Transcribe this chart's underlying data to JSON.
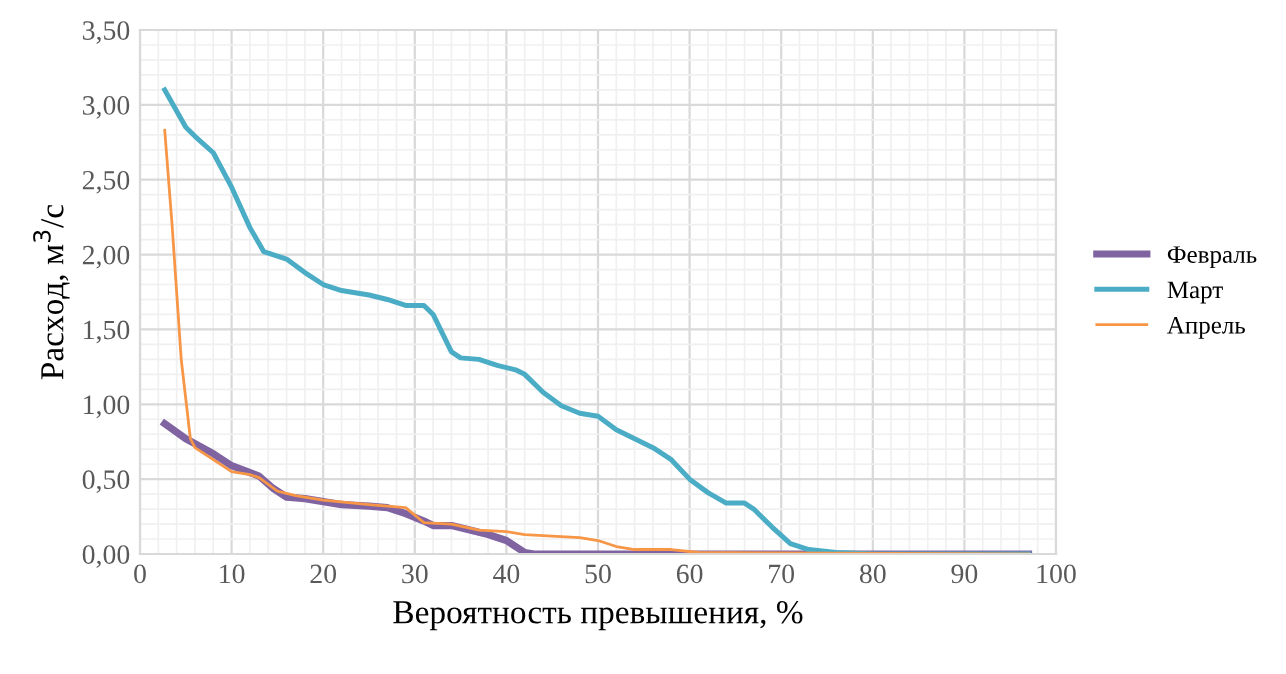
{
  "chart_data": {
    "type": "line",
    "xlabel": "Вероятность превышения, %",
    "ylabel": "Расход, м$^{3}$/с",
    "xlim": [
      0,
      100
    ],
    "xticks": [
      0,
      10,
      20,
      30,
      40,
      50,
      60,
      70,
      80,
      90,
      100
    ],
    "ylim": [
      0,
      3.5
    ],
    "yticks": [
      {
        "value": 0,
        "label": "0,00"
      },
      {
        "value": 0.5,
        "label": "0,50"
      },
      {
        "value": 1,
        "label": "1,00"
      },
      {
        "value": 1.5,
        "label": "1,50"
      },
      {
        "value": 2,
        "label": "2,00"
      },
      {
        "value": 2.5,
        "label": "2,50"
      },
      {
        "value": 3,
        "label": "3,00"
      },
      {
        "value": 3.5,
        "label": "3,50"
      }
    ],
    "grid": true,
    "legend": "right",
    "marker": "none",
    "line_style": "solid",
    "series": [
      {
        "name": "Февраль",
        "color": "#8064a2",
        "x": [
          2.7,
          5,
          8,
          10,
          13,
          14.5,
          16,
          18,
          20,
          22,
          25,
          27,
          29,
          31,
          32,
          34,
          36,
          38,
          40,
          42,
          43,
          97
        ],
        "values": [
          0.87,
          0.77,
          0.67,
          0.59,
          0.52,
          0.44,
          0.38,
          0.37,
          0.35,
          0.33,
          0.32,
          0.31,
          0.27,
          0.22,
          0.19,
          0.19,
          0.16,
          0.13,
          0.09,
          0.01,
          0,
          0
        ]
      },
      {
        "name": "Март",
        "color": "#4bacc6",
        "x": [
          2.7,
          5,
          6,
          8,
          10,
          12,
          13.5,
          15,
          16,
          18,
          20,
          22,
          25,
          27,
          29,
          31,
          32,
          34,
          35,
          37,
          39,
          41,
          42,
          44,
          46,
          48,
          50,
          52,
          54,
          56,
          58,
          60,
          62,
          64,
          66,
          67,
          69,
          71,
          73,
          76,
          80,
          97
        ],
        "values": [
          3.1,
          2.85,
          2.79,
          2.68,
          2.45,
          2.18,
          2.02,
          1.99,
          1.97,
          1.88,
          1.8,
          1.76,
          1.73,
          1.7,
          1.66,
          1.66,
          1.6,
          1.35,
          1.31,
          1.3,
          1.26,
          1.23,
          1.2,
          1.08,
          0.99,
          0.94,
          0.92,
          0.83,
          0.77,
          0.71,
          0.63,
          0.5,
          0.41,
          0.34,
          0.34,
          0.3,
          0.18,
          0.07,
          0.03,
          0.01,
          0,
          0
        ]
      },
      {
        "name": "Апрель",
        "color": "#f79646",
        "x": [
          2.7,
          3.5,
          4.5,
          5.5,
          6,
          8,
          10,
          12,
          13,
          15,
          17,
          20,
          25,
          29,
          31,
          34,
          37,
          40,
          42,
          45,
          48,
          50,
          52,
          54,
          58,
          61,
          97
        ],
        "values": [
          2.83,
          2.2,
          1.3,
          0.77,
          0.71,
          0.63,
          0.55,
          0.53,
          0.51,
          0.42,
          0.39,
          0.36,
          0.33,
          0.31,
          0.21,
          0.2,
          0.16,
          0.15,
          0.13,
          0.12,
          0.11,
          0.09,
          0.05,
          0.03,
          0.03,
          0.01,
          0
        ]
      }
    ]
  }
}
